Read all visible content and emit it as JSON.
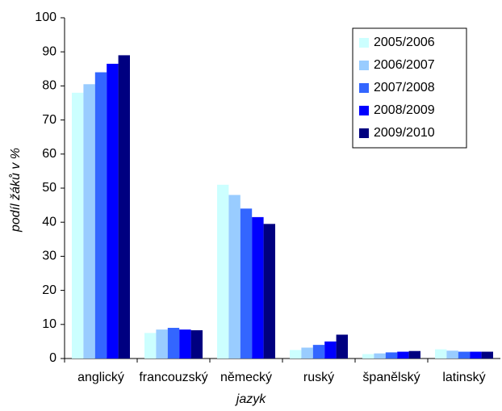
{
  "chart_data": {
    "type": "bar",
    "categories": [
      "anglický",
      "francouzský",
      "německý",
      "ruský",
      "španělský",
      "latinský"
    ],
    "series": [
      {
        "name": "2005/2006",
        "color": "#ccffff",
        "values": [
          78,
          7.5,
          51,
          2.5,
          1.3,
          2.7
        ]
      },
      {
        "name": "2006/2007",
        "color": "#99ccff",
        "values": [
          80.5,
          8.5,
          48,
          3.2,
          1.5,
          2.3
        ]
      },
      {
        "name": "2007/2008",
        "color": "#3366ff",
        "values": [
          84,
          9,
          44,
          4,
          1.8,
          2
        ]
      },
      {
        "name": "2008/2009",
        "color": "#0000ff",
        "values": [
          86.5,
          8.5,
          41.5,
          5,
          2,
          2
        ]
      },
      {
        "name": "2009/2010",
        "color": "#000080",
        "values": [
          89,
          8.3,
          39.5,
          7,
          2.2,
          2
        ]
      }
    ],
    "xlabel": "jazyk",
    "ylabel": "podíl žáků v %",
    "ylim": [
      0,
      100
    ],
    "yticks": [
      0,
      10,
      20,
      30,
      40,
      50,
      60,
      70,
      80,
      90,
      100
    ],
    "grid": false,
    "legend": "upper right"
  }
}
